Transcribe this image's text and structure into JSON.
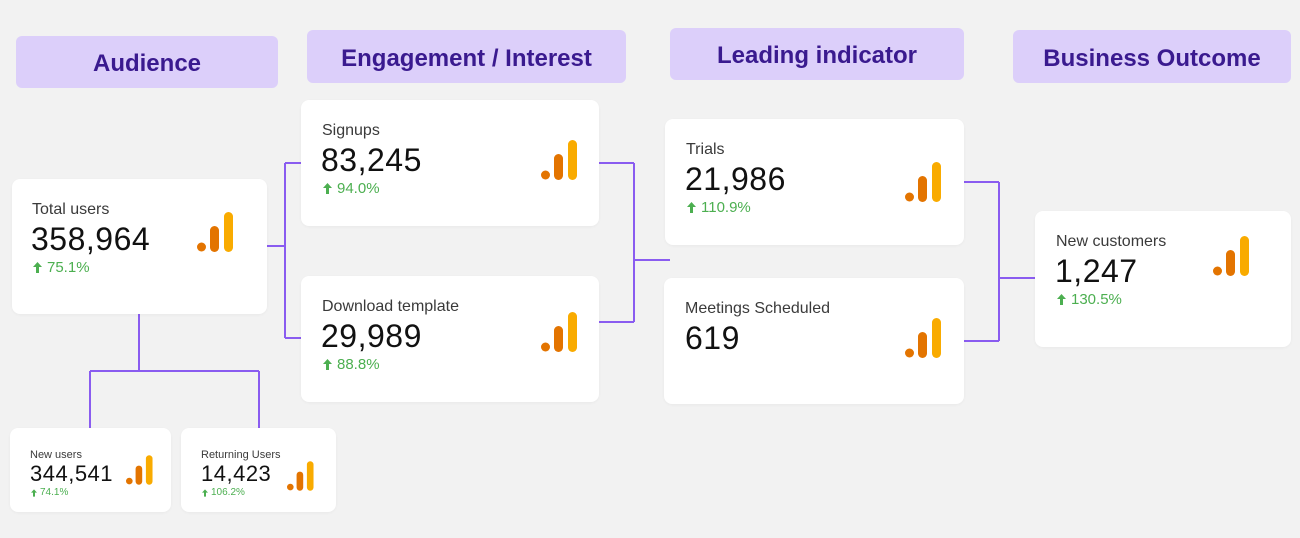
{
  "headers": {
    "audience": "Audience",
    "engagement": "Engagement / Interest",
    "leading": "Leading indicator",
    "business": "Business Outcome"
  },
  "cards": {
    "total_users": {
      "label": "Total users",
      "value": "358,964",
      "delta": "75.1%"
    },
    "new_users": {
      "label": "New users",
      "value": "344,541",
      "delta": "74.1%"
    },
    "returning_users": {
      "label": "Returning Users",
      "value": "14,423",
      "delta": "106.2%"
    },
    "signups": {
      "label": "Signups",
      "value": "83,245",
      "delta": "94.0%"
    },
    "download_template": {
      "label": "Download template",
      "value": "29,989",
      "delta": "88.8%"
    },
    "trials": {
      "label": "Trials",
      "value": "21,986",
      "delta": "110.9%"
    },
    "meetings_scheduled": {
      "label": "Meetings Scheduled",
      "value": "619"
    },
    "new_customers": {
      "label": "New customers",
      "value": "1,247",
      "delta": "130.5%"
    }
  },
  "colors": {
    "header_bg": "#dccffa",
    "header_text": "#3a1a8f",
    "connector": "#8a5cf0",
    "positive": "#4caf50",
    "icon_dark": "#e37400",
    "icon_light": "#f9ab00"
  },
  "icons": {
    "metric": "analytics-bars-icon",
    "trend": "arrow-up-icon"
  }
}
